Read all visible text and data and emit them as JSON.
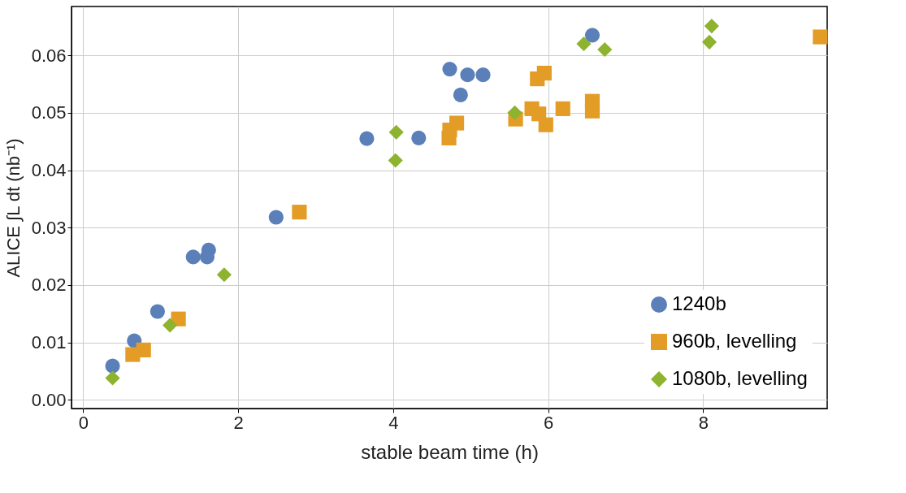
{
  "chart_data": {
    "type": "scatter",
    "xlabel": "stable beam time (h)",
    "ylabel": "ALICE ∫L dt (nb⁻¹)",
    "xlim": [
      -0.15,
      9.6
    ],
    "ylim": [
      -0.0015,
      0.0685
    ],
    "xticks": [
      0,
      2,
      4,
      6,
      8
    ],
    "yticks": [
      {
        "value": 0,
        "label": "0.00"
      },
      {
        "value": 0.01,
        "label": "0.01"
      },
      {
        "value": 0.02,
        "label": "0.02"
      },
      {
        "value": 0.03,
        "label": "0.03"
      },
      {
        "value": 0.04,
        "label": "0.04"
      },
      {
        "value": 0.05,
        "label": "0.05"
      },
      {
        "value": 0.06,
        "label": "0.06"
      }
    ],
    "grid": true,
    "legend": "bottom right",
    "series": [
      {
        "name": "1240b",
        "color": "#5b7fb8",
        "marker": "circle",
        "x": [
          0.38,
          0.66,
          0.96,
          1.42,
          1.6,
          1.62,
          2.49,
          3.66,
          4.33,
          4.73,
          4.87,
          4.96,
          5.16,
          6.57
        ],
        "values": [
          0.0059,
          0.0103,
          0.0154,
          0.0249,
          0.0249,
          0.0261,
          0.0318,
          0.0455,
          0.0456,
          0.0576,
          0.0531,
          0.0566,
          0.0566,
          0.0635
        ]
      },
      {
        "name": "960b, levelling",
        "color": "#e39c26",
        "marker": "square",
        "x": [
          0.64,
          0.78,
          1.23,
          2.79,
          4.72,
          4.73,
          4.82,
          5.58,
          5.79,
          5.86,
          5.95,
          5.88,
          5.97,
          6.19,
          6.57,
          6.57,
          9.51
        ],
        "values": [
          0.0079,
          0.0087,
          0.0141,
          0.0327,
          0.0456,
          0.047,
          0.0482,
          0.0489,
          0.0507,
          0.0559,
          0.0569,
          0.0498,
          0.0479,
          0.0507,
          0.052,
          0.0503,
          0.0632
        ]
      },
      {
        "name": "1080b, levelling",
        "color": "#8db32f",
        "marker": "diamond",
        "x": [
          0.38,
          1.12,
          1.82,
          4.04,
          4.03,
          5.57,
          6.46,
          6.73,
          8.11,
          8.08
        ],
        "values": [
          0.0038,
          0.013,
          0.0218,
          0.0466,
          0.0417,
          0.05,
          0.062,
          0.061,
          0.0651,
          0.0623
        ]
      }
    ]
  }
}
